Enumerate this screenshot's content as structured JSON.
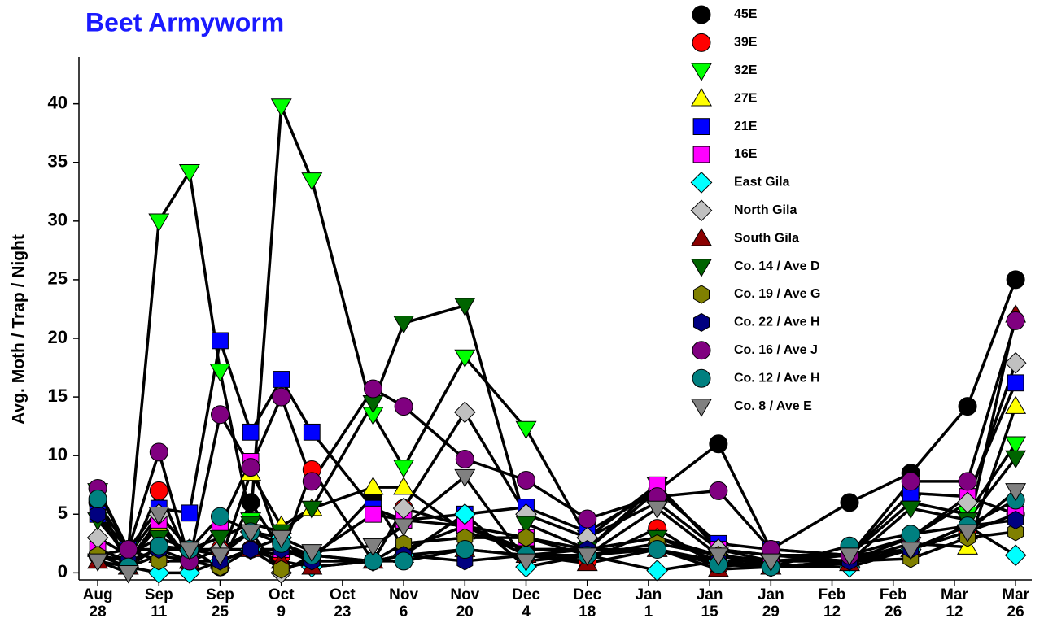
{
  "chart_data": {
    "type": "line",
    "title": "Beet Armyworm",
    "y_label": "Avg. Moth / Trap / Night",
    "x": [
      0,
      7,
      14,
      21,
      28,
      35,
      42,
      49,
      63,
      70,
      84,
      98,
      112,
      128,
      142,
      154,
      172,
      186,
      199,
      210
    ],
    "xlim": [
      -4.3,
      213.7
    ],
    "xticks": [
      {
        "value": 0,
        "label": "Aug 28"
      },
      {
        "value": 14,
        "label": "Sep 11"
      },
      {
        "value": 28,
        "label": "Sep 25"
      },
      {
        "value": 42,
        "label": "Oct 9"
      },
      {
        "value": 56,
        "label": "Oct 23"
      },
      {
        "value": 70,
        "label": "Nov 6"
      },
      {
        "value": 84,
        "label": "Nov 20"
      },
      {
        "value": 98,
        "label": "Dec 4"
      },
      {
        "value": 112,
        "label": "Dec 18"
      },
      {
        "value": 126,
        "label": "Jan 1"
      },
      {
        "value": 140,
        "label": "Jan 15"
      },
      {
        "value": 154,
        "label": "Jan 29"
      },
      {
        "value": 168,
        "label": "Feb 12"
      },
      {
        "value": 182,
        "label": "Feb 26"
      },
      {
        "value": 196,
        "label": "Mar 12"
      },
      {
        "value": 210,
        "label": "Mar 26"
      }
    ],
    "ylim": [
      -0.6,
      44
    ],
    "yticks": [
      0,
      5,
      10,
      15,
      20,
      25,
      30,
      35,
      40
    ],
    "line_color": "#000000",
    "series": [
      {
        "name": "45E",
        "color": "#000000",
        "marker": "circle",
        "values": [
          6,
          2,
          2,
          2,
          0.5,
          6,
          2,
          1,
          6.5,
          2,
          4,
          2,
          2,
          7,
          11,
          2,
          6,
          8.5,
          14.2,
          25
        ]
      },
      {
        "name": "39E",
        "color": "#ff0000",
        "marker": "circle",
        "values": [
          1.5,
          1,
          7,
          1,
          2,
          2,
          1.5,
          8.8,
          1,
          5.5,
          4,
          1.5,
          1,
          3.8,
          0.5,
          1,
          1,
          2,
          3.5,
          5
        ]
      },
      {
        "name": "32E",
        "color": "#00ff00",
        "marker": "triangle-down",
        "values": [
          7,
          2,
          30,
          34.2,
          17.2,
          4.5,
          39.8,
          33.5,
          13.5,
          9,
          18.4,
          12.3,
          3,
          7.5,
          2,
          1,
          1.5,
          6,
          5,
          11
        ]
      },
      {
        "name": "27E",
        "color": "#ffff00",
        "marker": "triangle-up",
        "values": [
          2,
          1,
          4,
          1,
          1,
          8.5,
          4,
          5.5,
          7.3,
          7.3,
          3.5,
          2,
          2,
          3,
          1.5,
          0.5,
          1,
          2.5,
          2.2,
          14.2
        ]
      },
      {
        "name": "21E",
        "color": "#0000ff",
        "marker": "square",
        "values": [
          5,
          2,
          5.5,
          5.1,
          19.8,
          12,
          16.5,
          12,
          5.5,
          4.5,
          5,
          5.6,
          3.5,
          7,
          2.5,
          2,
          1.5,
          6.8,
          6.5,
          16.2
        ]
      },
      {
        "name": "16E",
        "color": "#ff00ff",
        "marker": "square",
        "values": [
          2,
          1,
          4.5,
          1,
          4,
          9.5,
          2,
          1.5,
          5,
          4.5,
          4,
          3,
          2,
          7.5,
          2,
          1.5,
          1,
          3,
          6.5,
          5
        ]
      },
      {
        "name": "East Gila",
        "color": "#00ffff",
        "marker": "diamond",
        "values": [
          1.5,
          0.5,
          0,
          0,
          1,
          2,
          3,
          0.5,
          1,
          1.5,
          5,
          0.5,
          1.5,
          0.2,
          1,
          0.5,
          0.5,
          2,
          4,
          1.5
        ]
      },
      {
        "name": "North Gila",
        "color": "#c0c0c0",
        "marker": "diamond",
        "values": [
          3,
          1.5,
          5,
          2,
          2,
          3.5,
          0,
          1.5,
          1,
          5.5,
          13.7,
          5,
          3,
          6,
          2,
          1.5,
          1.5,
          3,
          6,
          17.9
        ]
      },
      {
        "name": "South Gila",
        "color": "#8b0000",
        "marker": "triangle-up",
        "values": [
          1,
          0.5,
          1.5,
          1,
          1,
          2,
          1,
          0.5,
          1,
          1.5,
          2,
          1.5,
          0.8,
          2,
          0.3,
          0.5,
          0.8,
          2,
          3.5,
          22
        ]
      },
      {
        "name": "Co. 14 / Ave D",
        "color": "#006400",
        "marker": "triangle-down",
        "values": [
          4.5,
          1.5,
          3,
          2,
          3,
          4.2,
          3.5,
          5.5,
          14.5,
          21.3,
          22.8,
          4.2,
          2,
          3,
          1,
          1,
          1,
          5.5,
          4.5,
          9.8
        ]
      },
      {
        "name": "Co. 19 / Ave G",
        "color": "#808000",
        "marker": "hexagon",
        "values": [
          1.5,
          2,
          1,
          1,
          0.5,
          2,
          0.3,
          1,
          1,
          2.5,
          3,
          3,
          1.5,
          2.5,
          1.5,
          0.5,
          1,
          1.2,
          3,
          3.5
        ]
      },
      {
        "name": "Co. 22 / Ave H",
        "color": "#000080",
        "marker": "hexagon",
        "values": [
          5,
          1,
          2,
          1,
          1,
          2,
          2,
          1,
          1,
          1.5,
          1,
          1.5,
          2,
          2,
          1,
          0.5,
          1,
          2,
          4,
          4.5
        ]
      },
      {
        "name": "Co. 16 / Ave J",
        "color": "#800080",
        "marker": "circle",
        "values": [
          7.2,
          2,
          10.3,
          1,
          13.5,
          9,
          15,
          7.8,
          15.7,
          14.2,
          9.7,
          7.9,
          4.6,
          6.5,
          7,
          2,
          1.5,
          7.8,
          7.8,
          21.5
        ]
      },
      {
        "name": "Co. 12 / Ave H",
        "color": "#008080",
        "marker": "circle",
        "values": [
          6.3,
          0.5,
          2.3,
          2,
          4.8,
          3.5,
          2.5,
          1.5,
          1,
          1,
          2,
          1.5,
          1.5,
          2,
          0.7,
          0.5,
          2.3,
          3.3,
          4,
          6.2
        ]
      },
      {
        "name": "Co. 8 / Ave E",
        "color": "#808080",
        "marker": "triangle-down",
        "values": [
          1,
          0,
          5,
          2,
          1.5,
          3.5,
          3,
          1.8,
          2.3,
          4,
          8.2,
          1,
          1.5,
          5.5,
          1.5,
          1,
          1.5,
          2,
          3.5,
          7
        ]
      }
    ]
  }
}
